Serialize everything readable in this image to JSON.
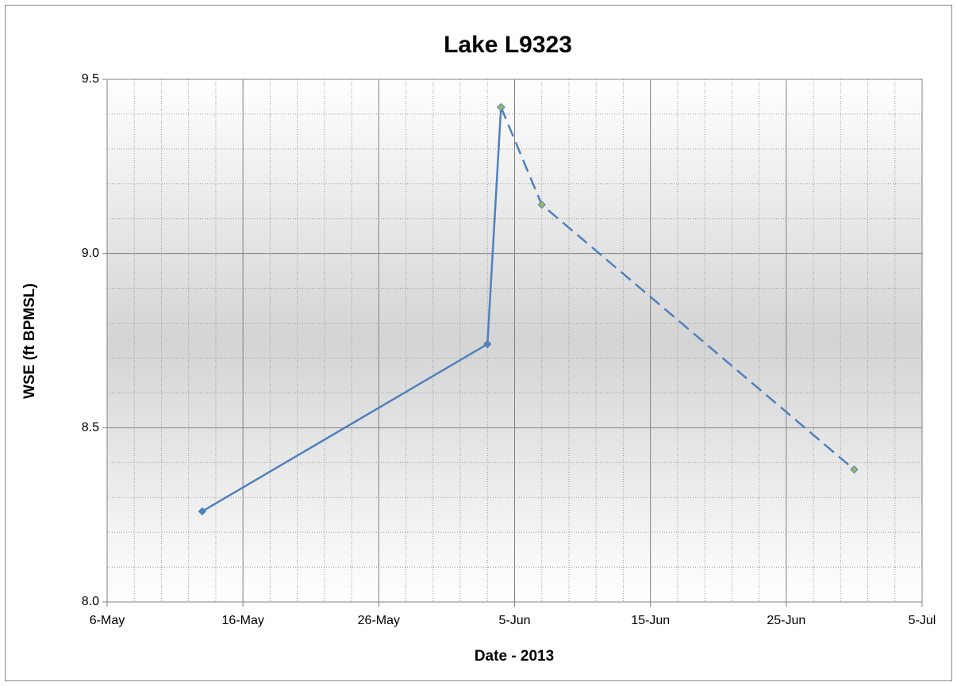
{
  "chart_data": {
    "type": "line",
    "title": "Lake L9323",
    "x_label": "Date - 2013",
    "y_label": "WSE (ft BPMSL)",
    "series": [
      {
        "color": "#4f81bd",
        "marker_color": "#4f81bd",
        "line_style": "solid",
        "x": [
          "2013-05-13",
          "2013-06-03",
          "2013-06-04"
        ],
        "values": [
          8.26,
          8.74,
          9.42
        ]
      },
      {
        "color": "#4f81bd",
        "marker_color": "#9bbb59",
        "line_style": "dashed",
        "x": [
          "2013-06-04",
          "2013-06-07",
          "2013-06-30"
        ],
        "values": [
          9.42,
          9.14,
          8.38
        ]
      }
    ],
    "xlim": [
      "2013-05-06",
      "2013-07-05"
    ],
    "xticks": [
      {
        "value": "2013-05-06",
        "label": "6-May"
      },
      {
        "value": "2013-05-16",
        "label": "16-May"
      },
      {
        "value": "2013-05-26",
        "label": "26-May"
      },
      {
        "value": "2013-06-05",
        "label": "5-Jun"
      },
      {
        "value": "2013-06-15",
        "label": "15-Jun"
      },
      {
        "value": "2013-06-25",
        "label": "25-Jun"
      },
      {
        "value": "2013-07-05",
        "label": "5-Jul"
      }
    ],
    "ylim": [
      8.0,
      9.5
    ],
    "yticks": [
      {
        "value": 8.0,
        "label": "8.0"
      },
      8.5,
      {
        "value": 9.0,
        "label": "9.0"
      },
      9.5
    ],
    "grid": true,
    "minor_grid": true
  }
}
